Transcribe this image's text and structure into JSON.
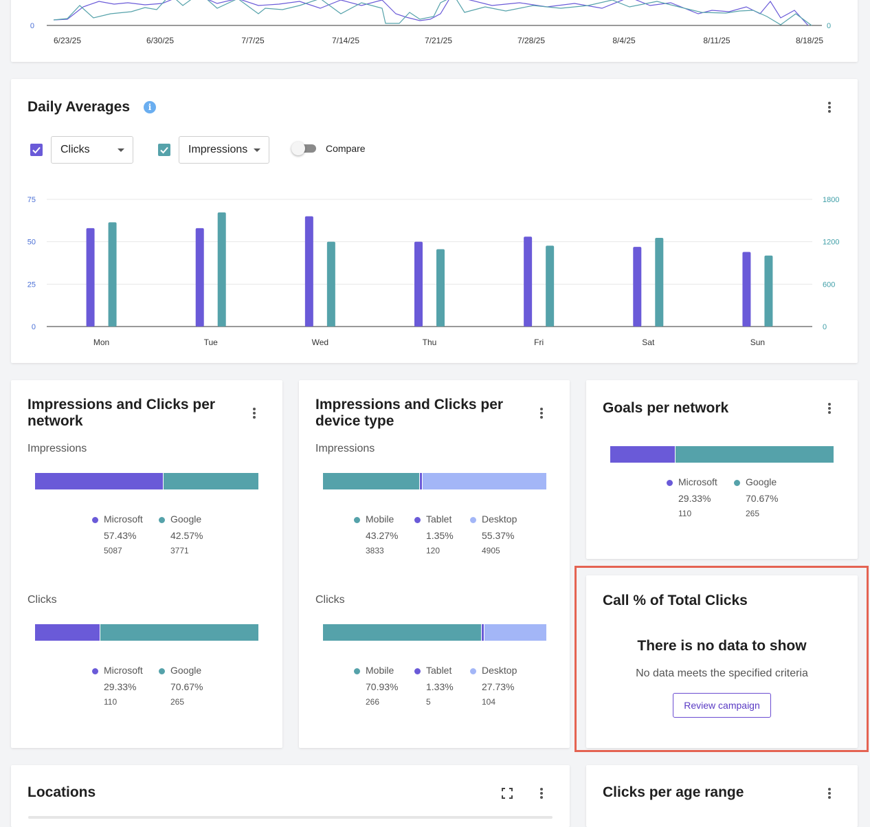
{
  "colors": {
    "microsoft": "#6a5ad8",
    "google": "#55a2aa",
    "desktop": "#a3b6f7",
    "highlight": "#e46352"
  },
  "top_chart": {
    "y_left_zero": "0",
    "y_right_zero": "0",
    "x_labels": [
      "6/23/25",
      "6/30/25",
      "7/7/25",
      "7/14/25",
      "7/21/25",
      "7/28/25",
      "8/4/25",
      "8/11/25",
      "8/18/25"
    ]
  },
  "daily_averages": {
    "title": "Daily Averages",
    "info_icon": "info-icon",
    "metric1": {
      "label": "Clicks",
      "checked": true
    },
    "metric2": {
      "label": "Impressions",
      "checked": true
    },
    "compare_label": "Compare",
    "chart_data": {
      "type": "bar",
      "title": "Daily Averages",
      "categories": [
        "Mon",
        "Tue",
        "Wed",
        "Thu",
        "Fri",
        "Sat",
        "Sun"
      ],
      "series": [
        {
          "name": "Clicks",
          "axis": "left",
          "values": [
            58,
            58,
            65,
            50,
            53,
            47,
            44
          ]
        },
        {
          "name": "Impressions",
          "axis": "right",
          "values": [
            1475,
            1615,
            1200,
            1095,
            1145,
            1255,
            1005
          ]
        }
      ],
      "y_left": {
        "ticks": [
          "0",
          "25",
          "50",
          "75"
        ],
        "lim": [
          0,
          75
        ]
      },
      "y_right": {
        "ticks": [
          "0",
          "600",
          "1200",
          "1800"
        ],
        "lim": [
          0,
          1800
        ]
      },
      "grid": true
    }
  },
  "per_network": {
    "title": "Impressions and Clicks per network",
    "impressions": {
      "label": "Impressions",
      "items": [
        {
          "name": "Microsoft",
          "pct": "57.43%",
          "count": "5087",
          "share": 57.43
        },
        {
          "name": "Google",
          "pct": "42.57%",
          "count": "3771",
          "share": 42.57
        }
      ]
    },
    "clicks": {
      "label": "Clicks",
      "items": [
        {
          "name": "Microsoft",
          "pct": "29.33%",
          "count": "110",
          "share": 29.33
        },
        {
          "name": "Google",
          "pct": "70.67%",
          "count": "265",
          "share": 70.67
        }
      ]
    }
  },
  "per_device": {
    "title": "Impressions and Clicks per device type",
    "impressions": {
      "label": "Impressions",
      "items": [
        {
          "name": "Mobile",
          "pct": "43.27%",
          "count": "3833",
          "share": 43.27
        },
        {
          "name": "Tablet",
          "pct": "1.35%",
          "count": "120",
          "share": 1.35
        },
        {
          "name": "Desktop",
          "pct": "55.37%",
          "count": "4905",
          "share": 55.37
        }
      ]
    },
    "clicks": {
      "label": "Clicks",
      "items": [
        {
          "name": "Mobile",
          "pct": "70.93%",
          "count": "266",
          "share": 70.93
        },
        {
          "name": "Tablet",
          "pct": "1.33%",
          "count": "5",
          "share": 1.33
        },
        {
          "name": "Desktop",
          "pct": "27.73%",
          "count": "104",
          "share": 27.73
        }
      ]
    }
  },
  "goals": {
    "title": "Goals per network",
    "items": [
      {
        "name": "Microsoft",
        "pct": "29.33%",
        "count": "110",
        "share": 29.33
      },
      {
        "name": "Google",
        "pct": "70.67%",
        "count": "265",
        "share": 70.67
      }
    ]
  },
  "call_pct": {
    "title": "Call % of Total Clicks",
    "empty_title": "There is no data to show",
    "empty_sub": "No data meets the specified criteria",
    "button": "Review campaign"
  },
  "locations": {
    "title": "Locations"
  },
  "age_range": {
    "title": "Clicks per age range"
  }
}
